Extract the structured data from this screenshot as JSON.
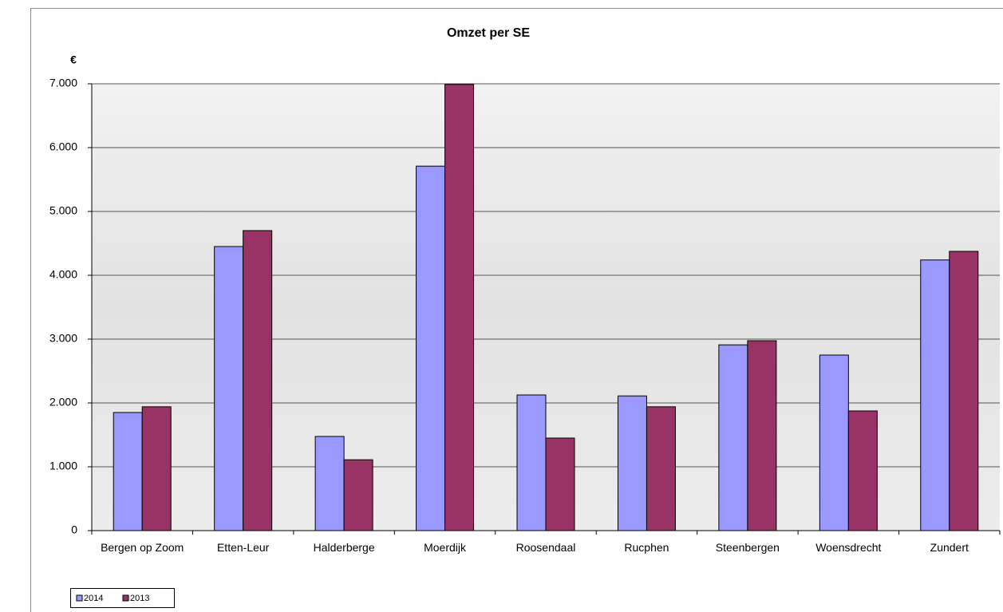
{
  "chart_data": {
    "type": "bar",
    "title": "Omzet per SE",
    "y_label": "€",
    "categories": [
      "Bergen op Zoom",
      "Etten-Leur",
      "Halderberge",
      "Moerdijk",
      "Roosendaal",
      "Rucphen",
      "Steenbergen",
      "Woensdrecht",
      "Zundert"
    ],
    "series": [
      {
        "name": "2014",
        "color": "#9999ff",
        "values": [
          1850,
          4450,
          1475,
          5710,
          2125,
          2110,
          2910,
          2750,
          4240
        ]
      },
      {
        "name": "2013",
        "color": "#993366",
        "values": [
          1940,
          4700,
          1110,
          6990,
          1450,
          1940,
          2975,
          1875,
          4375
        ]
      }
    ],
    "ylim": [
      0,
      7000
    ],
    "yticks": [
      0,
      {
        "value": 1000,
        "label": "1.000"
      },
      {
        "value": 2000,
        "label": "2.000"
      },
      {
        "value": 3000,
        "label": "3.000"
      },
      {
        "value": 4000,
        "label": "4.000"
      },
      {
        "value": 5000,
        "label": "5.000"
      },
      {
        "value": 6000,
        "label": "6.000"
      },
      {
        "value": 7000,
        "label": "7.000"
      }
    ],
    "grid": true,
    "legend": "bottom-left"
  }
}
